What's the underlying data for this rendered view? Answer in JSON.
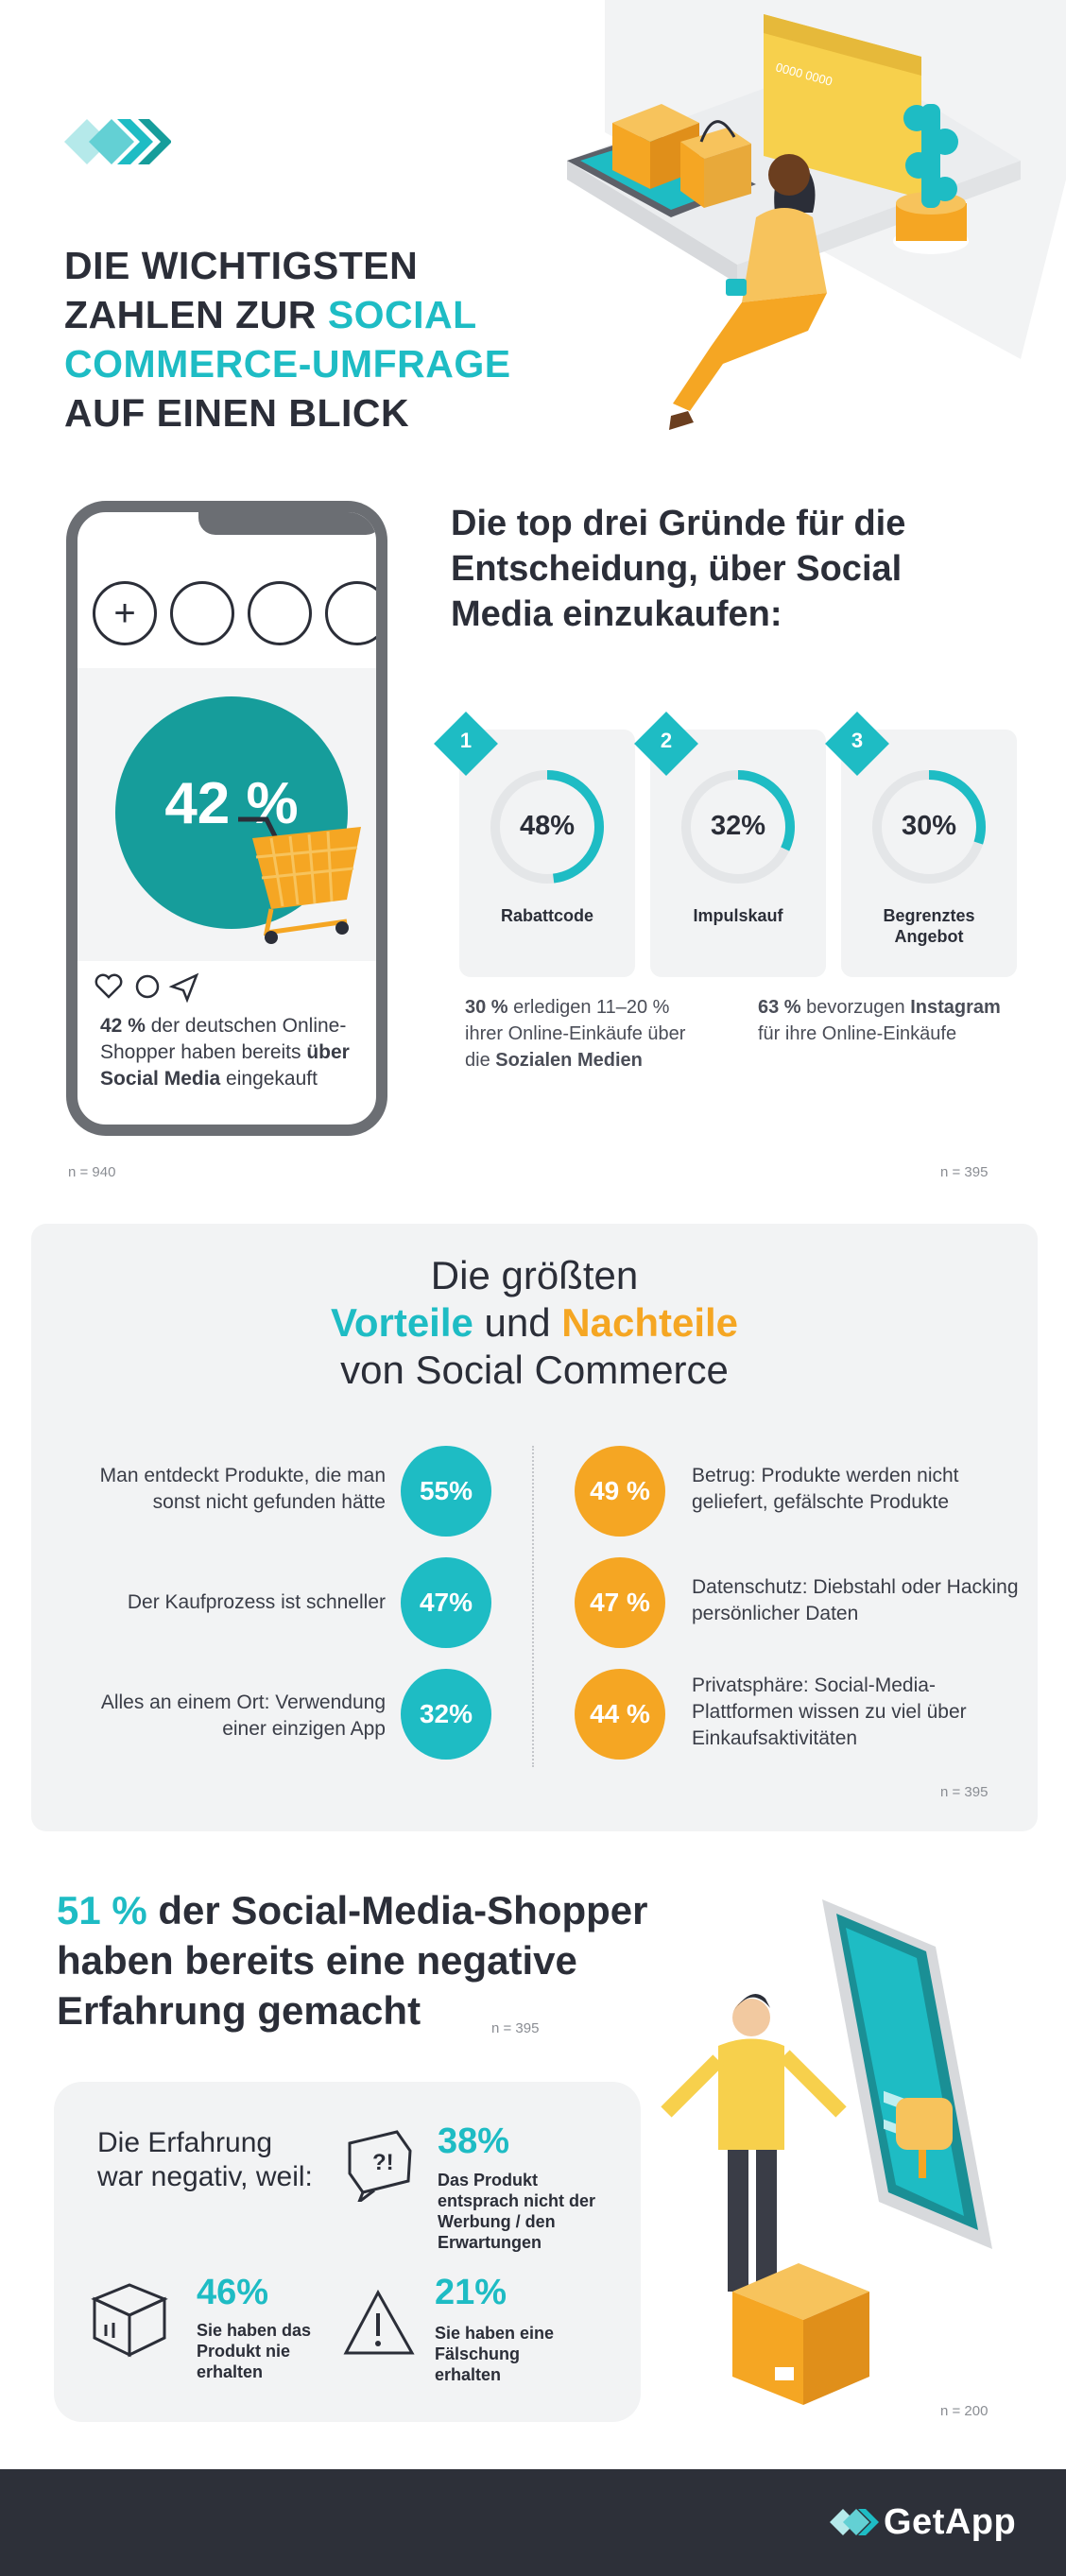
{
  "header": {
    "title_line1": "DIE WICHTIGSTEN",
    "title_line2a": "ZAHLEN ZUR ",
    "title_line2b": "SOCIAL",
    "title_line3": "COMMERCE-UMFRAGE",
    "title_line4": "AUF EINEN BLICK",
    "card_text": "0000 0000"
  },
  "phone_stat": {
    "value": "42 %",
    "caption_pre": "42 %",
    "caption_mid": " der deutschen Online-Shopper haben bereits ",
    "caption_bold": "über Social Media",
    "caption_post": " eingekauft",
    "n": "n = 940"
  },
  "reasons": {
    "title": "Die top drei Gründe für die Entscheidung, über Social Media einzukaufen:",
    "items": [
      {
        "num": "1",
        "percent": "48%",
        "value": 48,
        "label": "Rabattcode"
      },
      {
        "num": "2",
        "percent": "32%",
        "value": 32,
        "label": "Impulskauf"
      },
      {
        "num": "3",
        "percent": "30%",
        "value": 30,
        "label": "Begrenztes Angebot"
      }
    ],
    "stat1_bold": "30 %",
    "stat1_mid": " erledigen 11–20 % ihrer Online-Einkäufe über die ",
    "stat1_bold2": "Sozialen Medien",
    "stat2_bold": "63 %",
    "stat2_mid": " bevorzugen ",
    "stat2_bold2": "Instagram",
    "stat2_post": " für ihre Online-Einkäufe",
    "n": "n = 395"
  },
  "pros_cons": {
    "heading_line1": "Die größten",
    "heading_pro": "Vorteile",
    "heading_und": " und ",
    "heading_con": "Nachteile",
    "heading_line3": "von Social Commerce",
    "pros": [
      {
        "text": "Man entdeckt Produkte, die man sonst nicht gefunden hätte",
        "value": "55%"
      },
      {
        "text": "Der Kaufprozess ist schneller",
        "value": "47%"
      },
      {
        "text": "Alles an einem Ort: Verwendung einer einzigen App",
        "value": "32%"
      }
    ],
    "cons": [
      {
        "text": "Betrug: Produkte werden nicht geliefert, gefälschte Produkte",
        "value": "49 %"
      },
      {
        "text": "Datenschutz: Diebstahl oder Hacking persönlicher Daten",
        "value": "47 %"
      },
      {
        "text": "Privatsphäre: Social-Media-Plattformen wissen zu viel über Einkaufsaktivitäten",
        "value": "44 %"
      }
    ],
    "n": "n = 395"
  },
  "negative": {
    "title_value": "51 %",
    "title_rest": " der Social-Media-Shopper haben bereits eine negative Erfahrung gemacht",
    "title_n": "n = 395",
    "intro": "Die Erfahrung war negativ, weil:",
    "items": [
      {
        "value": "38%",
        "desc": "Das Produkt entsprach nicht der Werbung / den Erwartungen",
        "icon": "speech-bubble-icon"
      },
      {
        "value": "46%",
        "desc": "Sie haben das Produkt nie erhalten",
        "icon": "box-icon"
      },
      {
        "value": "21%",
        "desc": "Sie haben eine Fälschung erhalten",
        "icon": "warning-icon"
      }
    ],
    "n": "n = 200"
  },
  "footer": {
    "brand": "GetApp"
  },
  "colors": {
    "teal": "#1ebcc4",
    "dark_teal": "#169d9b",
    "orange": "#f5a623",
    "yellow": "#f2c94c",
    "dark": "#2b2e38"
  }
}
